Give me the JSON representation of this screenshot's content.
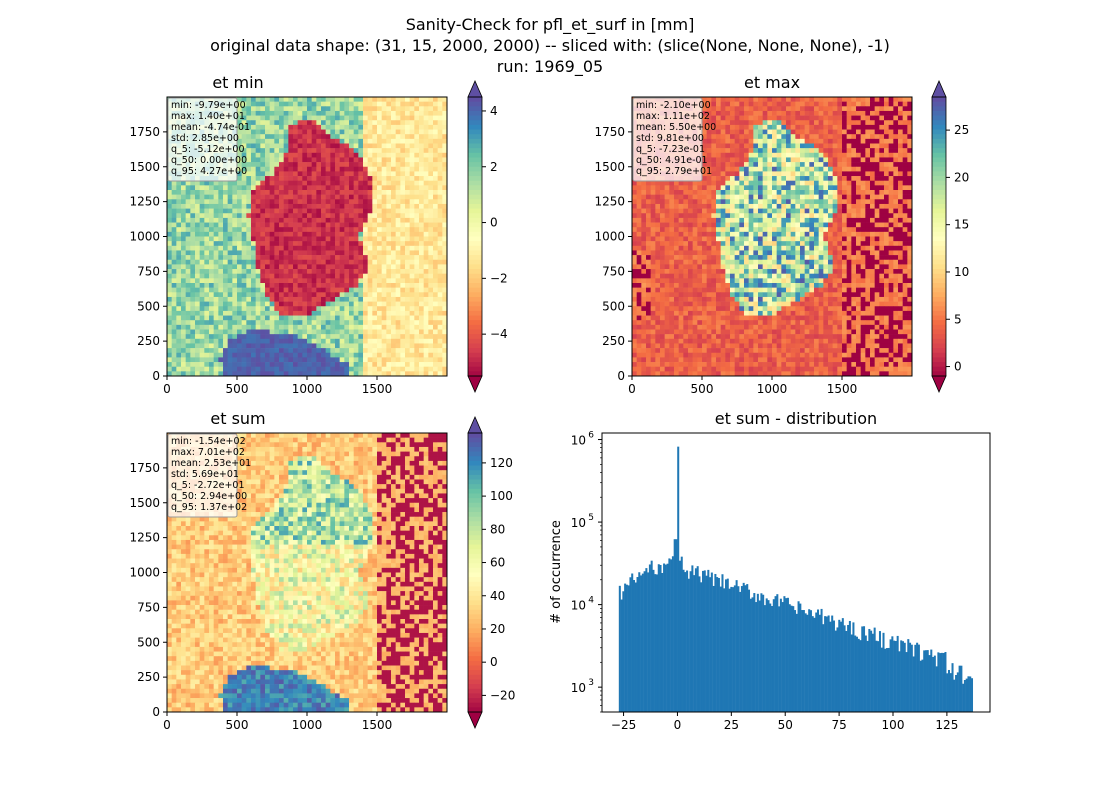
{
  "figure": {
    "title_lines": [
      "Sanity-Check for pfl_et_surf in [mm]",
      "original data shape: (31, 15, 2000, 2000) -- sliced with: (slice(None, None, None), -1)",
      "run: 1969_05"
    ]
  },
  "colors": {
    "hist_bar": "#1f77b4",
    "spectral": [
      "#9e0142",
      "#d53e4f",
      "#f46d43",
      "#fdae61",
      "#fee08b",
      "#ffffbf",
      "#e6f598",
      "#abdda4",
      "#66c2a5",
      "#3288bd",
      "#5e4fa2"
    ]
  },
  "chart_data": [
    {
      "type": "heatmap",
      "title": "et min",
      "colormap": "Spectral",
      "xlim": [
        0,
        2000
      ],
      "ylim": [
        0,
        2000
      ],
      "xticks": [
        "0",
        "500",
        "1000",
        "1500"
      ],
      "yticks": [
        "0",
        "250",
        "500",
        "750",
        "1000",
        "1250",
        "1500",
        "1750"
      ],
      "colorbar": {
        "min": -5.5,
        "max": 4.5,
        "ticks": [
          "4",
          "2",
          "0",
          "−2",
          "−4"
        ],
        "tick_values": [
          4,
          2,
          0,
          -2,
          -4
        ]
      },
      "stats": [
        "min: -9.79e+00",
        "max: 1.40e+01",
        "mean: -4.74e-01",
        "std: 2.85e+00",
        "q_5: -5.12e+00",
        "q_50: 0.00e+00",
        "q_95: 4.27e+00"
      ]
    },
    {
      "type": "heatmap",
      "title": "et max",
      "colormap": "Spectral",
      "xlim": [
        0,
        2000
      ],
      "ylim": [
        0,
        2000
      ],
      "xticks": [
        "0",
        "500",
        "1000",
        "1500"
      ],
      "yticks": [
        "0",
        "250",
        "500",
        "750",
        "1000",
        "1250",
        "1500",
        "1750"
      ],
      "colorbar": {
        "min": -1,
        "max": 28.5,
        "ticks": [
          "25",
          "20",
          "15",
          "10",
          "5",
          "0"
        ],
        "tick_values": [
          25,
          20,
          15,
          10,
          5,
          0
        ]
      },
      "stats": [
        "min: -2.10e+00",
        "max: 1.11e+02",
        "mean: 5.50e+00",
        "std: 9.81e+00",
        "q_5: -7.23e-01",
        "q_50: 4.91e-01",
        "q_95: 2.79e+01"
      ]
    },
    {
      "type": "heatmap",
      "title": "et sum",
      "colormap": "Spectral",
      "xlim": [
        0,
        2000
      ],
      "ylim": [
        0,
        2000
      ],
      "xticks": [
        "0",
        "500",
        "1000",
        "1500"
      ],
      "yticks": [
        "0",
        "250",
        "500",
        "750",
        "1000",
        "1250",
        "1500",
        "1750"
      ],
      "colorbar": {
        "min": -30,
        "max": 138,
        "ticks": [
          "120",
          "100",
          "80",
          "60",
          "40",
          "20",
          "0",
          "−20"
        ],
        "tick_values": [
          120,
          100,
          80,
          60,
          40,
          20,
          0,
          -20
        ]
      },
      "stats": [
        "min: -1.54e+02",
        "max: 7.01e+02",
        "mean: 2.53e+01",
        "std: 5.69e+01",
        "q_5: -2.72e+01",
        "q_50: 2.94e+00",
        "q_95: 1.37e+02"
      ]
    },
    {
      "type": "bar",
      "title": "et sum - distribution",
      "ylabel": "# of occurrence",
      "yscale": "log",
      "xlim": [
        -35,
        145
      ],
      "ylim": [
        500,
        1200000
      ],
      "xticks": [
        "−25",
        "0",
        "25",
        "50",
        "75",
        "100",
        "125"
      ],
      "xtick_values": [
        -25,
        0,
        25,
        50,
        75,
        100,
        125
      ],
      "ytick_values": [
        1000,
        10000,
        100000,
        1000000
      ],
      "ytick_exponents": [
        "3",
        "4",
        "5",
        "6"
      ],
      "bin_range": [
        -27.2,
        137
      ],
      "peak": {
        "x": 0,
        "count": 820000
      }
    }
  ]
}
